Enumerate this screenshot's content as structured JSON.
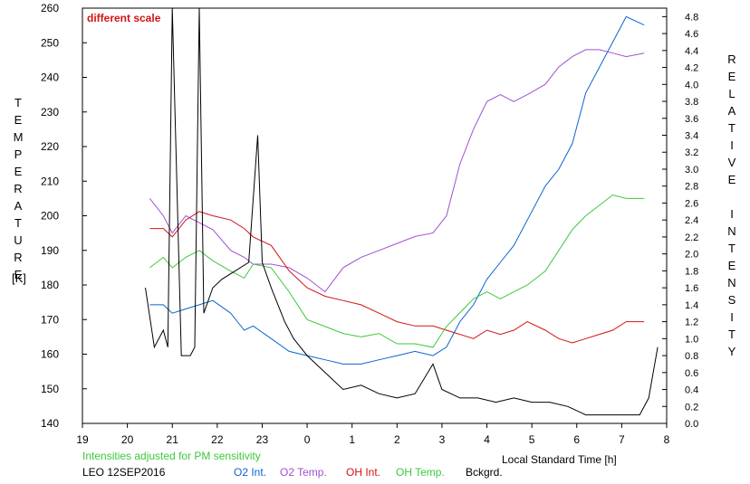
{
  "chart_data": {
    "type": "line",
    "annotation": "different scale",
    "left_axis": {
      "label": "TEMPERATURE",
      "unit": "[K]",
      "ticks": [
        "140",
        "150",
        "160",
        "170",
        "180",
        "190",
        "200",
        "210",
        "220",
        "230",
        "240",
        "250",
        "260"
      ],
      "range": [
        140,
        260
      ]
    },
    "right_axis": {
      "label": "RELATIVE INTENSITY",
      "ticks": [
        "0.0",
        "0.2",
        "0.4",
        "0.6",
        "0.8",
        "1.0",
        "1.2",
        "1.4",
        "1.6",
        "1.8",
        "2.0",
        "2.2",
        "2.4",
        "2.6",
        "2.8",
        "3.0",
        "3.2",
        "3.4",
        "3.6",
        "3.8",
        "4.0",
        "4.2",
        "4.4",
        "4.6",
        "4.8"
      ],
      "range": [
        0,
        4.9
      ]
    },
    "x_axis": {
      "label": "Local Standard Time [h]",
      "ticks": [
        "19",
        "20",
        "21",
        "22",
        "23",
        "0",
        "1",
        "2",
        "3",
        "4",
        "5",
        "6",
        "7",
        "8"
      ],
      "range": [
        19,
        32
      ]
    },
    "footer": {
      "note": "Intensities adjusted for PM sensitivity",
      "station": "LEO 12SEP2016",
      "legend": [
        "O2 Int.",
        "O2 Temp.",
        "OH Int.",
        "OH Temp.",
        "Bckgrd."
      ]
    },
    "series": [
      {
        "name": "O2 Int.",
        "color": "#0a64d2",
        "axis": "right",
        "x": [
          20.5,
          20.8,
          21.0,
          21.3,
          21.6,
          21.9,
          22.3,
          22.6,
          22.8,
          23.2,
          23.6,
          24.0,
          24.4,
          24.8,
          25.2,
          25.6,
          26.0,
          26.4,
          26.8,
          27.1,
          27.4,
          27.7,
          28.0,
          28.3,
          28.6,
          28.9,
          29.3,
          29.6,
          29.9,
          30.2,
          30.5,
          30.8,
          31.1,
          31.5
        ],
        "y": [
          1.4,
          1.4,
          1.3,
          1.35,
          1.4,
          1.45,
          1.3,
          1.1,
          1.15,
          1.0,
          0.85,
          0.8,
          0.75,
          0.7,
          0.7,
          0.75,
          0.8,
          0.85,
          0.8,
          0.9,
          1.2,
          1.4,
          1.7,
          1.9,
          2.1,
          2.4,
          2.8,
          3.0,
          3.3,
          3.9,
          4.2,
          4.5,
          4.8,
          4.7
        ]
      },
      {
        "name": "O2 Temp.",
        "color": "#a050d2",
        "axis": "left",
        "x": [
          20.5,
          20.8,
          21.0,
          21.3,
          21.6,
          21.9,
          22.3,
          22.6,
          22.8,
          23.2,
          23.6,
          24.0,
          24.4,
          24.8,
          25.2,
          25.6,
          26.0,
          26.4,
          26.8,
          27.1,
          27.4,
          27.7,
          28.0,
          28.3,
          28.6,
          28.9,
          29.3,
          29.6,
          29.9,
          30.2,
          30.5,
          30.8,
          31.1,
          31.5
        ],
        "y": [
          205,
          200,
          195,
          200,
          198,
          196,
          190,
          188,
          186,
          186,
          185,
          182,
          178,
          185,
          188,
          190,
          192,
          194,
          195,
          200,
          215,
          225,
          233,
          235,
          233,
          235,
          238,
          243,
          246,
          248,
          248,
          247,
          246,
          247
        ]
      },
      {
        "name": "OH Int.",
        "color": "#d21414",
        "axis": "right",
        "x": [
          20.5,
          20.8,
          21.0,
          21.3,
          21.6,
          21.9,
          22.3,
          22.6,
          22.8,
          23.2,
          23.6,
          24.0,
          24.4,
          24.8,
          25.2,
          25.6,
          26.0,
          26.4,
          26.8,
          27.1,
          27.4,
          27.7,
          28.0,
          28.3,
          28.6,
          28.9,
          29.3,
          29.6,
          29.9,
          30.2,
          30.5,
          30.8,
          31.1,
          31.5
        ],
        "y": [
          2.3,
          2.3,
          2.2,
          2.4,
          2.5,
          2.45,
          2.4,
          2.3,
          2.2,
          2.1,
          1.8,
          1.6,
          1.5,
          1.45,
          1.4,
          1.3,
          1.2,
          1.15,
          1.15,
          1.1,
          1.05,
          1.0,
          1.1,
          1.05,
          1.1,
          1.2,
          1.1,
          1.0,
          0.95,
          1.0,
          1.05,
          1.1,
          1.2,
          1.2
        ]
      },
      {
        "name": "OH Temp.",
        "color": "#3cc83c",
        "axis": "left",
        "x": [
          20.5,
          20.8,
          21.0,
          21.3,
          21.6,
          21.9,
          22.3,
          22.6,
          22.8,
          23.2,
          23.6,
          24.0,
          24.4,
          24.8,
          25.2,
          25.6,
          26.0,
          26.4,
          26.8,
          27.1,
          27.4,
          27.7,
          28.0,
          28.3,
          28.6,
          28.9,
          29.3,
          29.6,
          29.9,
          30.2,
          30.5,
          30.8,
          31.1,
          31.5
        ],
        "y": [
          185,
          188,
          185,
          188,
          190,
          187,
          184,
          182,
          186,
          185,
          178,
          170,
          168,
          166,
          165,
          166,
          163,
          163,
          162,
          168,
          172,
          176,
          178,
          176,
          178,
          180,
          184,
          190,
          196,
          200,
          203,
          206,
          205,
          205
        ]
      },
      {
        "name": "Bckgrd.",
        "color": "#000000",
        "axis": "right",
        "x": [
          20.4,
          20.6,
          20.8,
          20.9,
          21.0,
          21.2,
          21.4,
          21.5,
          21.6,
          21.7,
          21.9,
          22.1,
          22.4,
          22.7,
          22.9,
          23.0,
          23.2,
          23.5,
          23.7,
          24.0,
          24.4,
          24.8,
          25.2,
          25.6,
          26.0,
          26.4,
          26.8,
          27.0,
          27.4,
          27.8,
          28.2,
          28.6,
          29.0,
          29.4,
          29.8,
          30.2,
          30.6,
          31.0,
          31.4,
          31.6,
          31.8
        ],
        "y": [
          1.6,
          0.9,
          1.1,
          0.9,
          4.9,
          0.8,
          0.8,
          0.9,
          4.9,
          1.3,
          1.6,
          1.7,
          1.8,
          1.9,
          3.4,
          1.9,
          1.6,
          1.2,
          1.0,
          0.8,
          0.6,
          0.4,
          0.45,
          0.35,
          0.3,
          0.35,
          0.7,
          0.4,
          0.3,
          0.3,
          0.25,
          0.3,
          0.25,
          0.25,
          0.2,
          0.1,
          0.1,
          0.1,
          0.1,
          0.3,
          0.9
        ]
      }
    ]
  }
}
